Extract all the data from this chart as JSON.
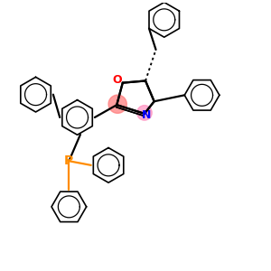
{
  "bg_color": "#ffffff",
  "bond_color": "#000000",
  "O_color": "#ff0000",
  "N_color": "#0000ff",
  "P_color": "#ff8c00",
  "lw": 1.6,
  "lw2": 1.2,
  "r": 0.42,
  "xlim": [
    -2.8,
    2.8
  ],
  "ylim": [
    -3.2,
    3.2
  ]
}
